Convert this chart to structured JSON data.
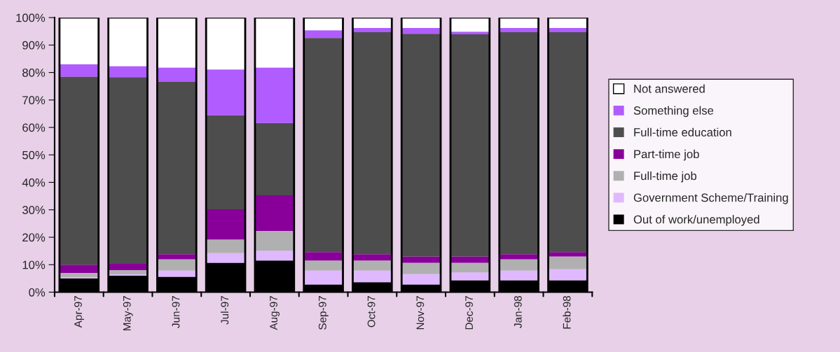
{
  "chart_data": {
    "type": "bar",
    "stacked": true,
    "categories": [
      "Apr-97",
      "May-97",
      "Jun-97",
      "Jul-97",
      "Aug-97",
      "Sep-97",
      "Oct-97",
      "Nov-97",
      "Dec-97",
      "Jan-98",
      "Feb-98"
    ],
    "series": [
      {
        "name": "Out of work/unemployed",
        "color": "#000000",
        "values": [
          5,
          6,
          5.6,
          10.7,
          11.5,
          2.8,
          3.6,
          2.8,
          4.3,
          4.3,
          4.3
        ]
      },
      {
        "name": "Government Scheme/Training",
        "color": "#e0b8ff",
        "values": [
          0.5,
          0.5,
          2.3,
          3.6,
          3.6,
          5.1,
          4.3,
          3.8,
          2.9,
          3.6,
          4.1
        ]
      },
      {
        "name": "Full-time job",
        "color": "#b0b0b0",
        "values": [
          1.5,
          1.5,
          4.1,
          4.9,
          7.2,
          3.6,
          3.6,
          4.1,
          3.5,
          4.1,
          4.6
        ]
      },
      {
        "name": "Part-time job",
        "color": "#880099",
        "values": [
          3,
          2.3,
          1.8,
          11,
          13,
          3.1,
          2.3,
          2.3,
          2.3,
          1.8,
          1.6
        ]
      },
      {
        "name": "Full-time education",
        "color": "#4d4d4d",
        "values": [
          68.5,
          68,
          62.9,
          34.2,
          26.3,
          78,
          80.9,
          81.1,
          80.9,
          80.9,
          80.1
        ]
      },
      {
        "name": "Something else",
        "color": "#b05cff",
        "values": [
          4.5,
          4,
          5.1,
          16.7,
          20.2,
          2.8,
          1.5,
          2.1,
          1,
          1.5,
          1.5
        ]
      },
      {
        "name": "Not answered",
        "color": "#ffffff",
        "values": [
          17,
          17.7,
          18.2,
          18.9,
          18.2,
          4.6,
          3.8,
          3.8,
          5.1,
          3.8,
          3.8
        ]
      }
    ],
    "ylim": [
      0,
      100
    ],
    "yticks": [
      {
        "value": 0,
        "label": "0%"
      },
      {
        "value": 10,
        "label": "10%"
      },
      {
        "value": 20,
        "label": "20%"
      },
      {
        "value": 30,
        "label": "30%"
      },
      {
        "value": 40,
        "label": "40%"
      },
      {
        "value": 50,
        "label": "50%"
      },
      {
        "value": 60,
        "label": "60%"
      },
      {
        "value": 70,
        "label": "70%"
      },
      {
        "value": 80,
        "label": "80%"
      },
      {
        "value": 90,
        "label": "90%"
      },
      {
        "value": 100,
        "label": "100%"
      }
    ],
    "legend": "right",
    "grid": false
  }
}
